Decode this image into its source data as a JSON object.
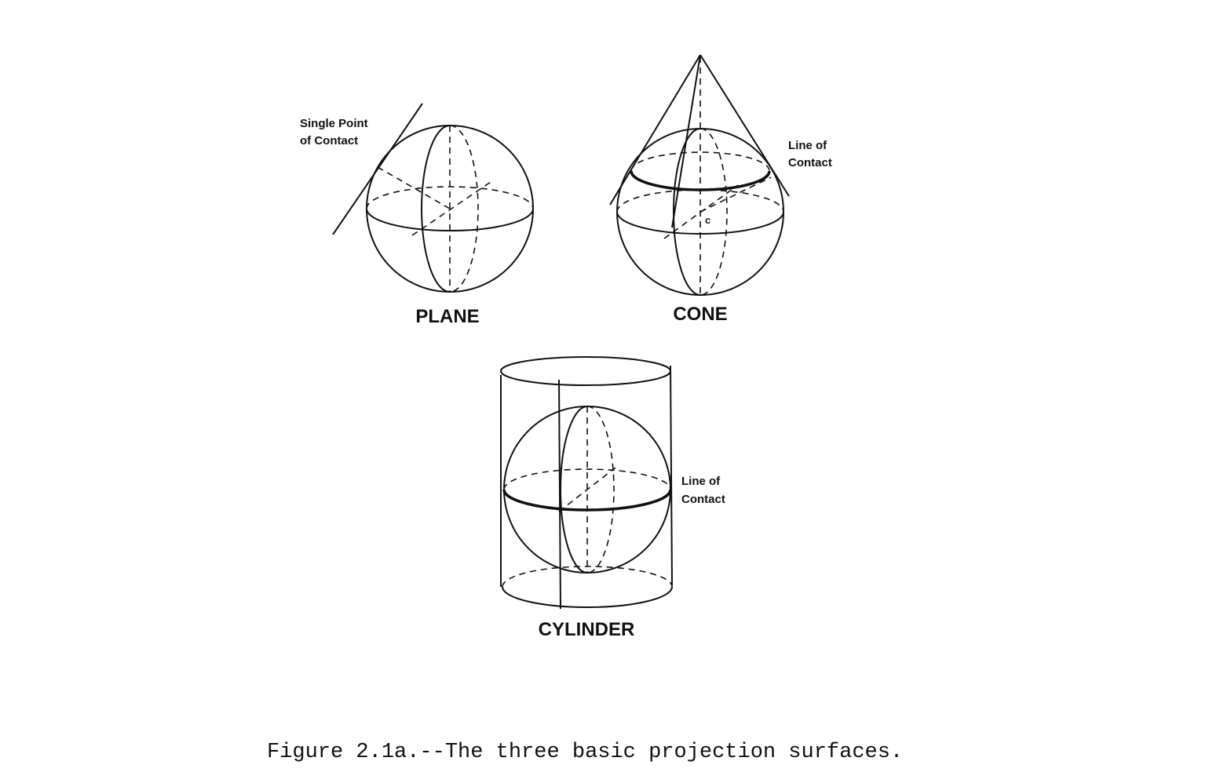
{
  "plane": {
    "title": "PLANE",
    "annotation_line1": "Single Point",
    "annotation_line2": "of Contact"
  },
  "cone": {
    "title": "CONE",
    "center_label": "c",
    "annotation_line1": "Line of",
    "annotation_line2": "Contact"
  },
  "cylinder": {
    "title": "CYLINDER",
    "annotation_line1": "Line of",
    "annotation_line2": "Contact"
  },
  "caption": "Figure 2.1a.--The three basic projection surfaces."
}
